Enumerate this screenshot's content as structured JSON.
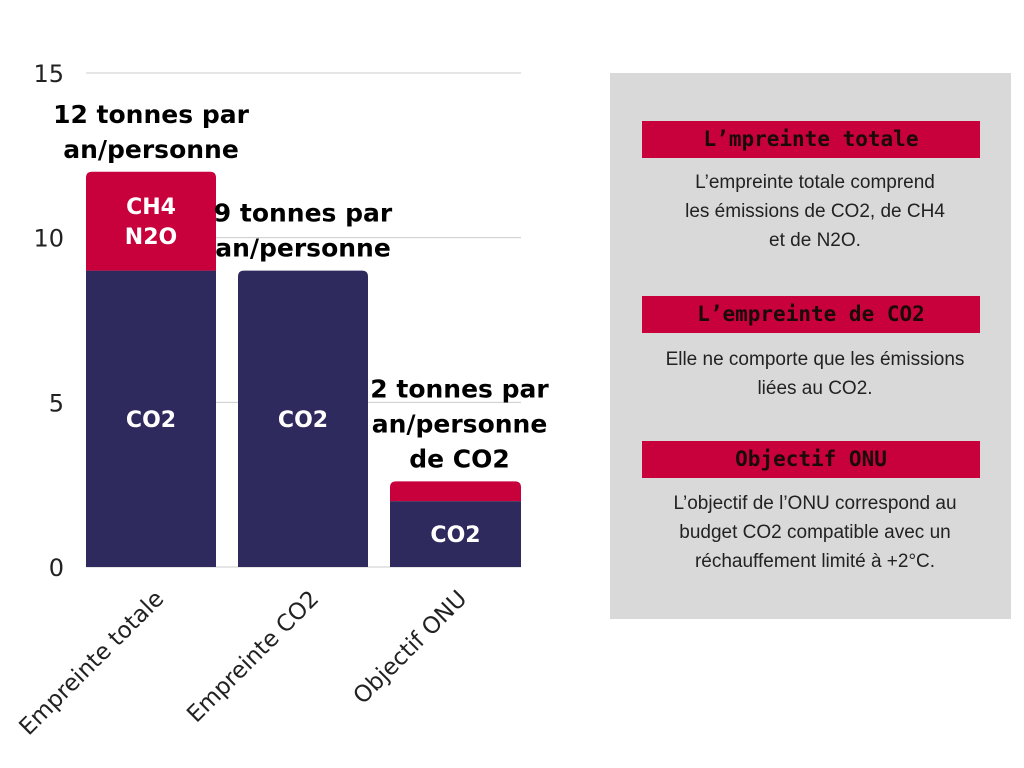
{
  "chart_data": {
    "type": "bar",
    "stacked": true,
    "categories": [
      "Empreinte totale",
      "Empreinte CO2",
      "Objectif ONU"
    ],
    "series": [
      {
        "name": "CO2",
        "values": [
          9,
          9,
          2
        ],
        "color": "#2e2a5e"
      },
      {
        "name": "CH4\nN2O",
        "values": [
          3,
          0,
          0.6
        ],
        "color": "#c8003c"
      }
    ],
    "segment_labels": [
      {
        "bar": 0,
        "series": 0,
        "text": "CO2"
      },
      {
        "bar": 0,
        "series": 1,
        "lines": [
          "CH4",
          "N2O"
        ]
      },
      {
        "bar": 1,
        "series": 0,
        "text": "CO2"
      },
      {
        "bar": 2,
        "series": 0,
        "text": "CO2"
      }
    ],
    "annotations": [
      {
        "bar": 0,
        "lines": [
          "12 tonnes par",
          "an/personne"
        ]
      },
      {
        "bar": 1,
        "lines": [
          "9 tonnes par",
          "an/personne"
        ]
      },
      {
        "bar": 2,
        "lines": [
          "2 tonnes par",
          "an/personne",
          "de CO2"
        ]
      }
    ],
    "yticks": [
      0,
      5,
      10,
      15
    ],
    "ylim": [
      0,
      15
    ],
    "grid": true,
    "title": "",
    "xlabel": "",
    "ylabel": ""
  },
  "panel": {
    "sections": [
      {
        "header": "L’mpreinte totale",
        "lines": [
          "L’empreinte totale comprend",
          "les émissions de CO2, de CH4",
          "et de N2O."
        ]
      },
      {
        "header": "L’empreinte de CO2",
        "lines": [
          "Elle ne comporte que les émissions",
          "liées au CO2."
        ]
      },
      {
        "header": "Objectif ONU",
        "lines": [
          "L’objectif de l’ONU correspond au",
          "budget CO2 compatible avec un",
          "réchauffement limité à +2°C."
        ]
      }
    ]
  },
  "colors": {
    "panel_bg": "#d9d9d9",
    "header_bg": "#c8003c",
    "co2": "#2e2a5e",
    "other": "#c8003c"
  }
}
